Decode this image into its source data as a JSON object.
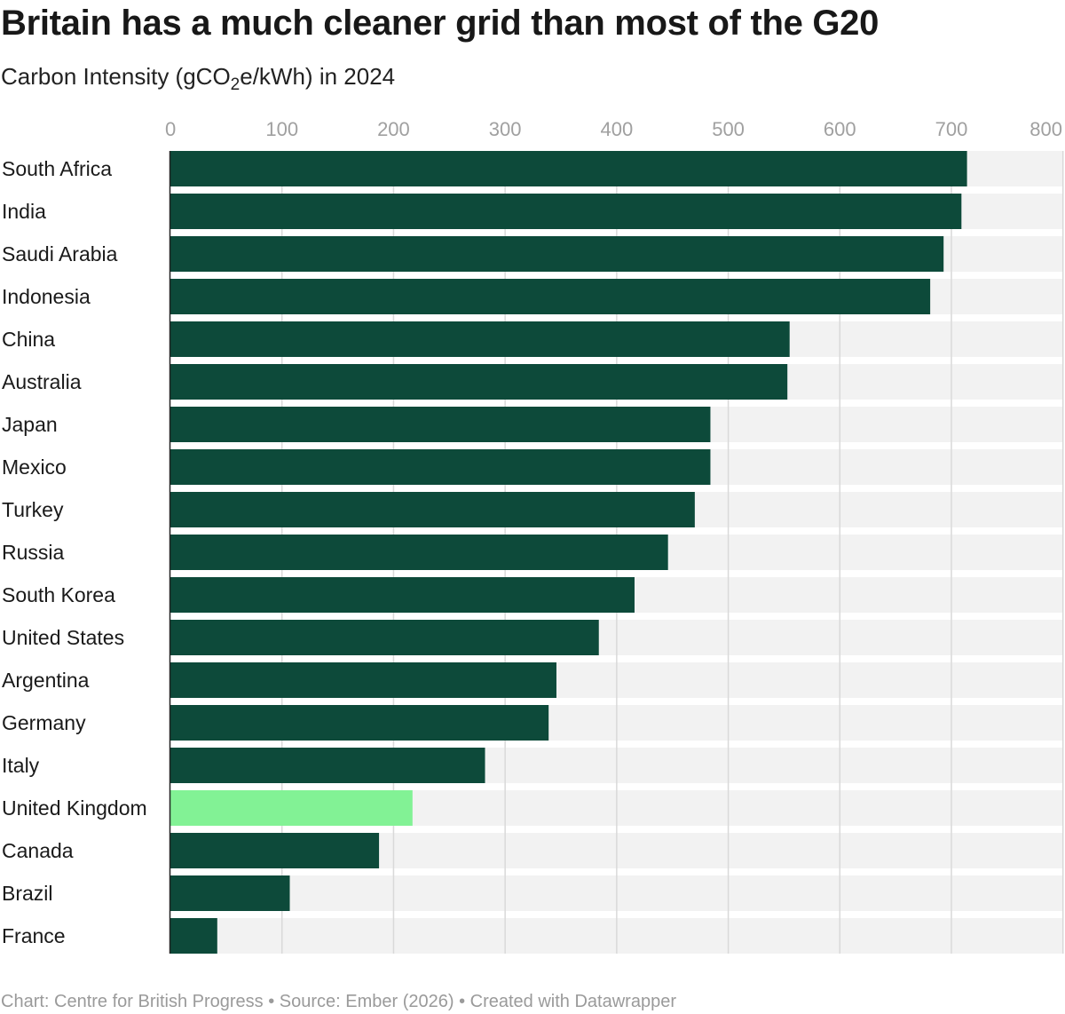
{
  "header": {
    "title": "Britain has a much cleaner grid than most of the G20",
    "subtitle_prefix": "Carbon Intensity (gCO",
    "subtitle_sub": "2",
    "subtitle_suffix": "e/kWh) in 2024"
  },
  "footer": {
    "text": "Chart: Centre for British Progress • Source: Ember (2026) • Created with Datawrapper"
  },
  "colors": {
    "bar": "#0d4a3a",
    "highlight": "#82f295",
    "track": "#f2f2f2",
    "gridline": "#d9d9d9",
    "tick_label": "#a0a0a0",
    "category_label": "#1a1a1a"
  },
  "chart_data": {
    "type": "bar",
    "orientation": "horizontal",
    "title": "Britain has a much cleaner grid than most of the G20",
    "subtitle": "Carbon Intensity (gCO2e/kWh) in 2024",
    "xlim": [
      0,
      800
    ],
    "x_ticks": [
      0,
      100,
      200,
      300,
      400,
      500,
      600,
      700,
      800
    ],
    "x_tick_labels": [
      "0",
      "100",
      "200",
      "300",
      "400",
      "500",
      "600",
      "700",
      "800"
    ],
    "grid": true,
    "categories": [
      "South Africa",
      "India",
      "Saudi Arabia",
      "Indonesia",
      "China",
      "Australia",
      "Japan",
      "Mexico",
      "Turkey",
      "Russia",
      "South Korea",
      "United States",
      "Argentina",
      "Germany",
      "Italy",
      "United Kingdom",
      "Canada",
      "Brazil",
      "France"
    ],
    "values": [
      714,
      709,
      693,
      681,
      555,
      553,
      484,
      484,
      470,
      446,
      416,
      384,
      346,
      339,
      282,
      217,
      187,
      107,
      42
    ],
    "highlight_category": "United Kingdom"
  }
}
